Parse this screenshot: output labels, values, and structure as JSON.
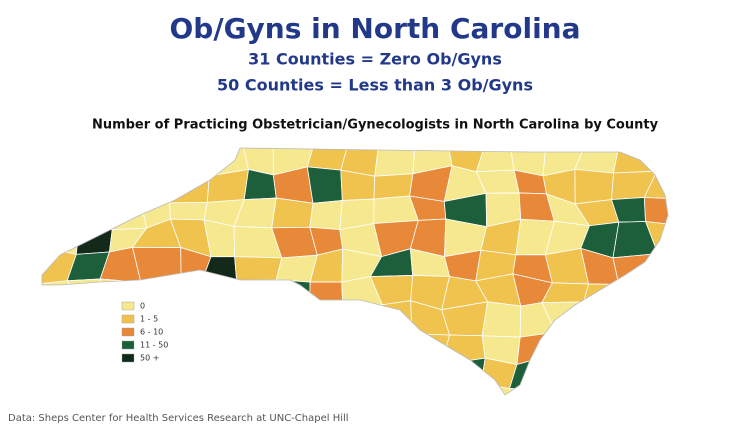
{
  "header": {
    "title": "Ob/Gyns in North Carolina",
    "subtitles": [
      "31 Counties = Zero Ob/Gyns",
      "50 Counties = Less than 3 Ob/Gyns"
    ]
  },
  "map": {
    "title": "Number of Practicing Obstetrician/Gynecologists in North Carolina by County",
    "legend": [
      {
        "label": "0",
        "color": "#f6e88f"
      },
      {
        "label": "1 - 5",
        "color": "#f0c24e"
      },
      {
        "label": "6 - 10",
        "color": "#e8893a"
      },
      {
        "label": "11 - 50",
        "color": "#1d5e3b"
      },
      {
        "label": "50 +",
        "color": "#13291a"
      }
    ]
  },
  "source": "Data: Sheps Center for Health Services Research at UNC-Chapel Hill"
}
